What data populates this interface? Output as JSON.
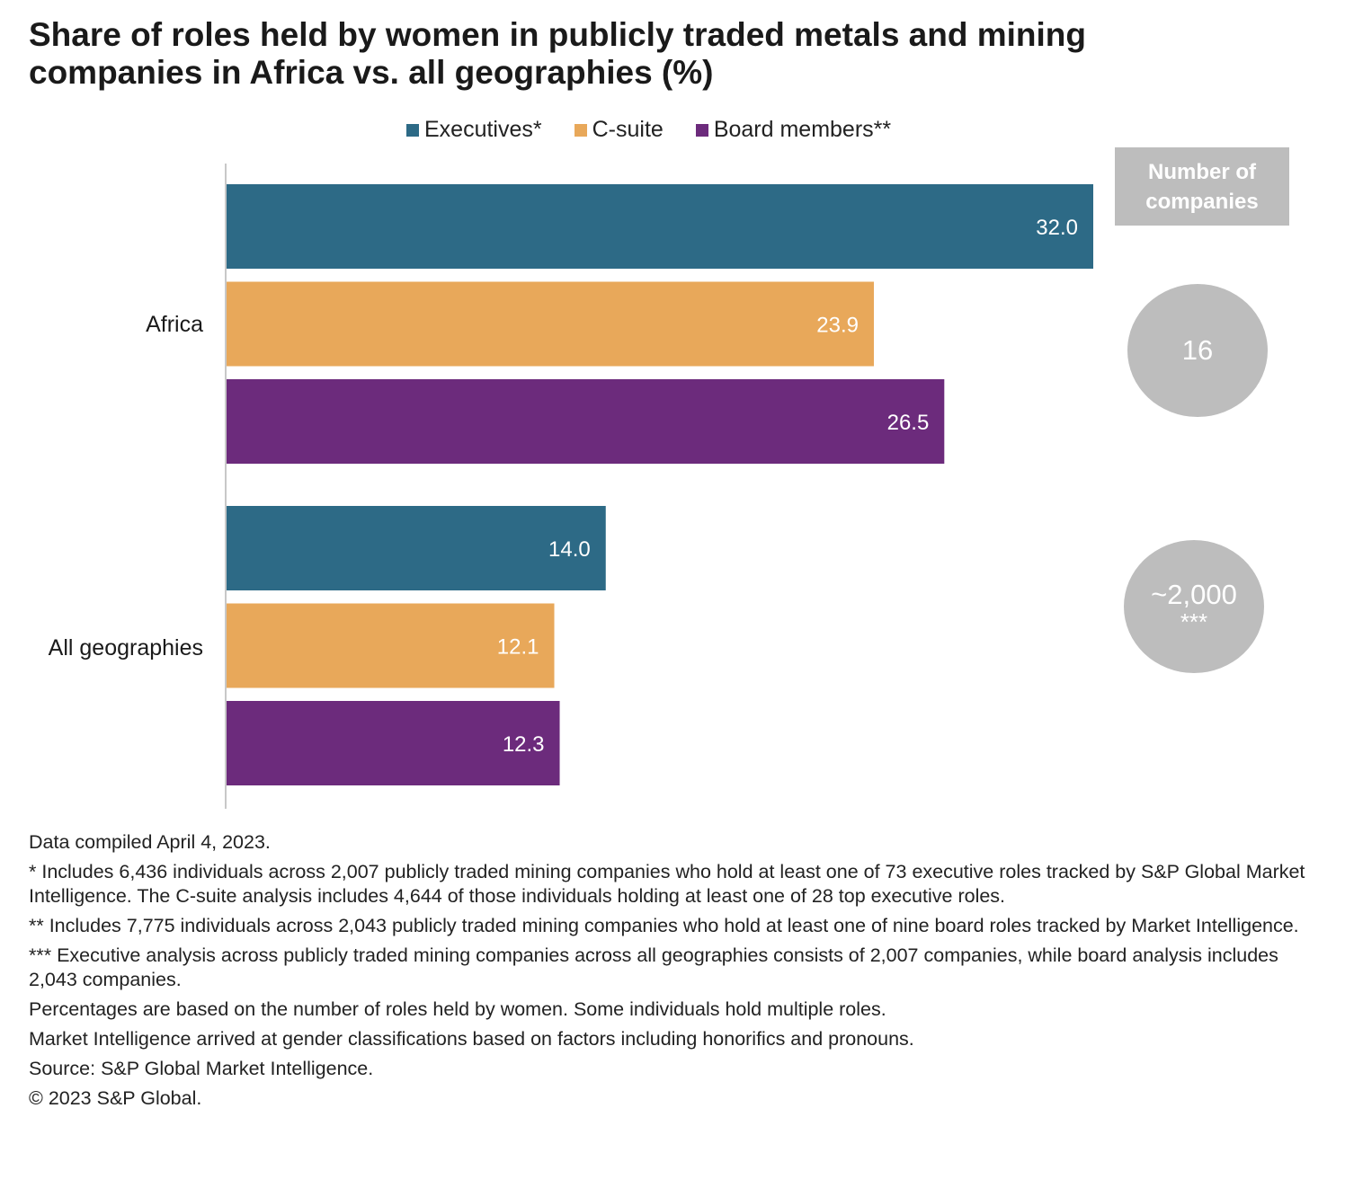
{
  "title_line1": "Share of roles held by women in publicly traded metals and mining",
  "title_line2": "companies in Africa vs. all geographies (%)",
  "legend": [
    {
      "label": "Executives*",
      "color": "#2d6a86"
    },
    {
      "label": "C-suite",
      "color": "#e8a85a"
    },
    {
      "label": "Board members**",
      "color": "#6c2b7c"
    }
  ],
  "chart_data": {
    "type": "bar",
    "orientation": "horizontal",
    "title": "Share of roles held by women in publicly traded metals and mining companies in Africa vs. all geographies (%)",
    "categories": [
      "Africa",
      "All geographies"
    ],
    "series": [
      {
        "name": "Executives*",
        "color": "#2d6a86",
        "values": [
          32.0,
          14.0
        ]
      },
      {
        "name": "C-suite",
        "color": "#e8a85a",
        "values": [
          23.9,
          12.1
        ]
      },
      {
        "name": "Board members**",
        "color": "#6c2b7c",
        "values": [
          26.5,
          12.3
        ]
      }
    ],
    "value_labels": [
      [
        "32.0",
        "14.0"
      ],
      [
        "23.9",
        "12.1"
      ],
      [
        "26.5",
        "12.3"
      ]
    ],
    "xlim": [
      0,
      32.0
    ],
    "grid": false,
    "legend_position": "top-center"
  },
  "companies": {
    "header_line1": "Number of",
    "header_line2": "companies",
    "africa": "16",
    "all_value": "~2,000",
    "all_note": "***"
  },
  "notes": [
    "Data compiled April 4, 2023.",
    "* Includes 6,436 individuals across 2,007 publicly traded mining companies who hold at least one of 73 executive roles tracked by S&P Global Market Intelligence. The C-suite analysis includes 4,644 of those individuals holding at least one of 28 top executive roles.",
    "** Includes 7,775 individuals across 2,043 publicly traded mining companies who hold at least one of nine board roles tracked by Market Intelligence.",
    "*** Executive analysis across publicly traded mining companies across all geographies consists of 2,007 companies, while board analysis includes 2,043 companies.",
    "Percentages are based on the number of roles held by women. Some individuals hold multiple roles.",
    "Market Intelligence arrived at gender classifications based on factors including honorifics and pronouns.",
    "Source: S&P Global Market Intelligence.",
    "© 2023 S&P Global."
  ]
}
